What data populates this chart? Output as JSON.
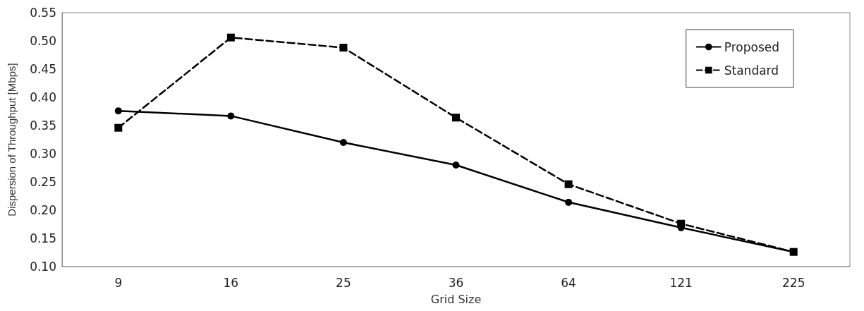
{
  "chart_data": {
    "type": "line",
    "xlabel": "Grid Size",
    "ylabel": "Dispersion of Throughput [Mbps]",
    "categories": [
      "9",
      "16",
      "25",
      "36",
      "64",
      "121",
      "225"
    ],
    "series": [
      {
        "name": "Proposed",
        "color": "#000000",
        "marker": "circle",
        "line_style": "solid",
        "values": [
          0.376,
          0.367,
          0.32,
          0.28,
          0.214,
          0.169,
          0.126
        ]
      },
      {
        "name": "Standard",
        "color": "#000000",
        "marker": "square",
        "line_style": "dashed",
        "values": [
          0.346,
          0.506,
          0.488,
          0.364,
          0.246,
          0.176,
          0.126
        ]
      }
    ],
    "ylim": [
      0.1,
      0.55
    ],
    "yticks": [
      {
        "value": 0.1,
        "label": "0.10"
      },
      {
        "value": 0.15,
        "label": "0.15"
      },
      {
        "value": 0.2,
        "label": "0.20"
      },
      {
        "value": 0.25,
        "label": "0.25"
      },
      {
        "value": 0.3,
        "label": "0.30"
      },
      {
        "value": 0.35,
        "label": "0.35"
      },
      {
        "value": 0.4,
        "label": "0.40"
      },
      {
        "value": 0.45,
        "label": "0.45"
      },
      {
        "value": 0.5,
        "label": "0.50"
      },
      {
        "value": 0.55,
        "label": "0.55"
      }
    ],
    "grid": false,
    "legend": "top right"
  }
}
